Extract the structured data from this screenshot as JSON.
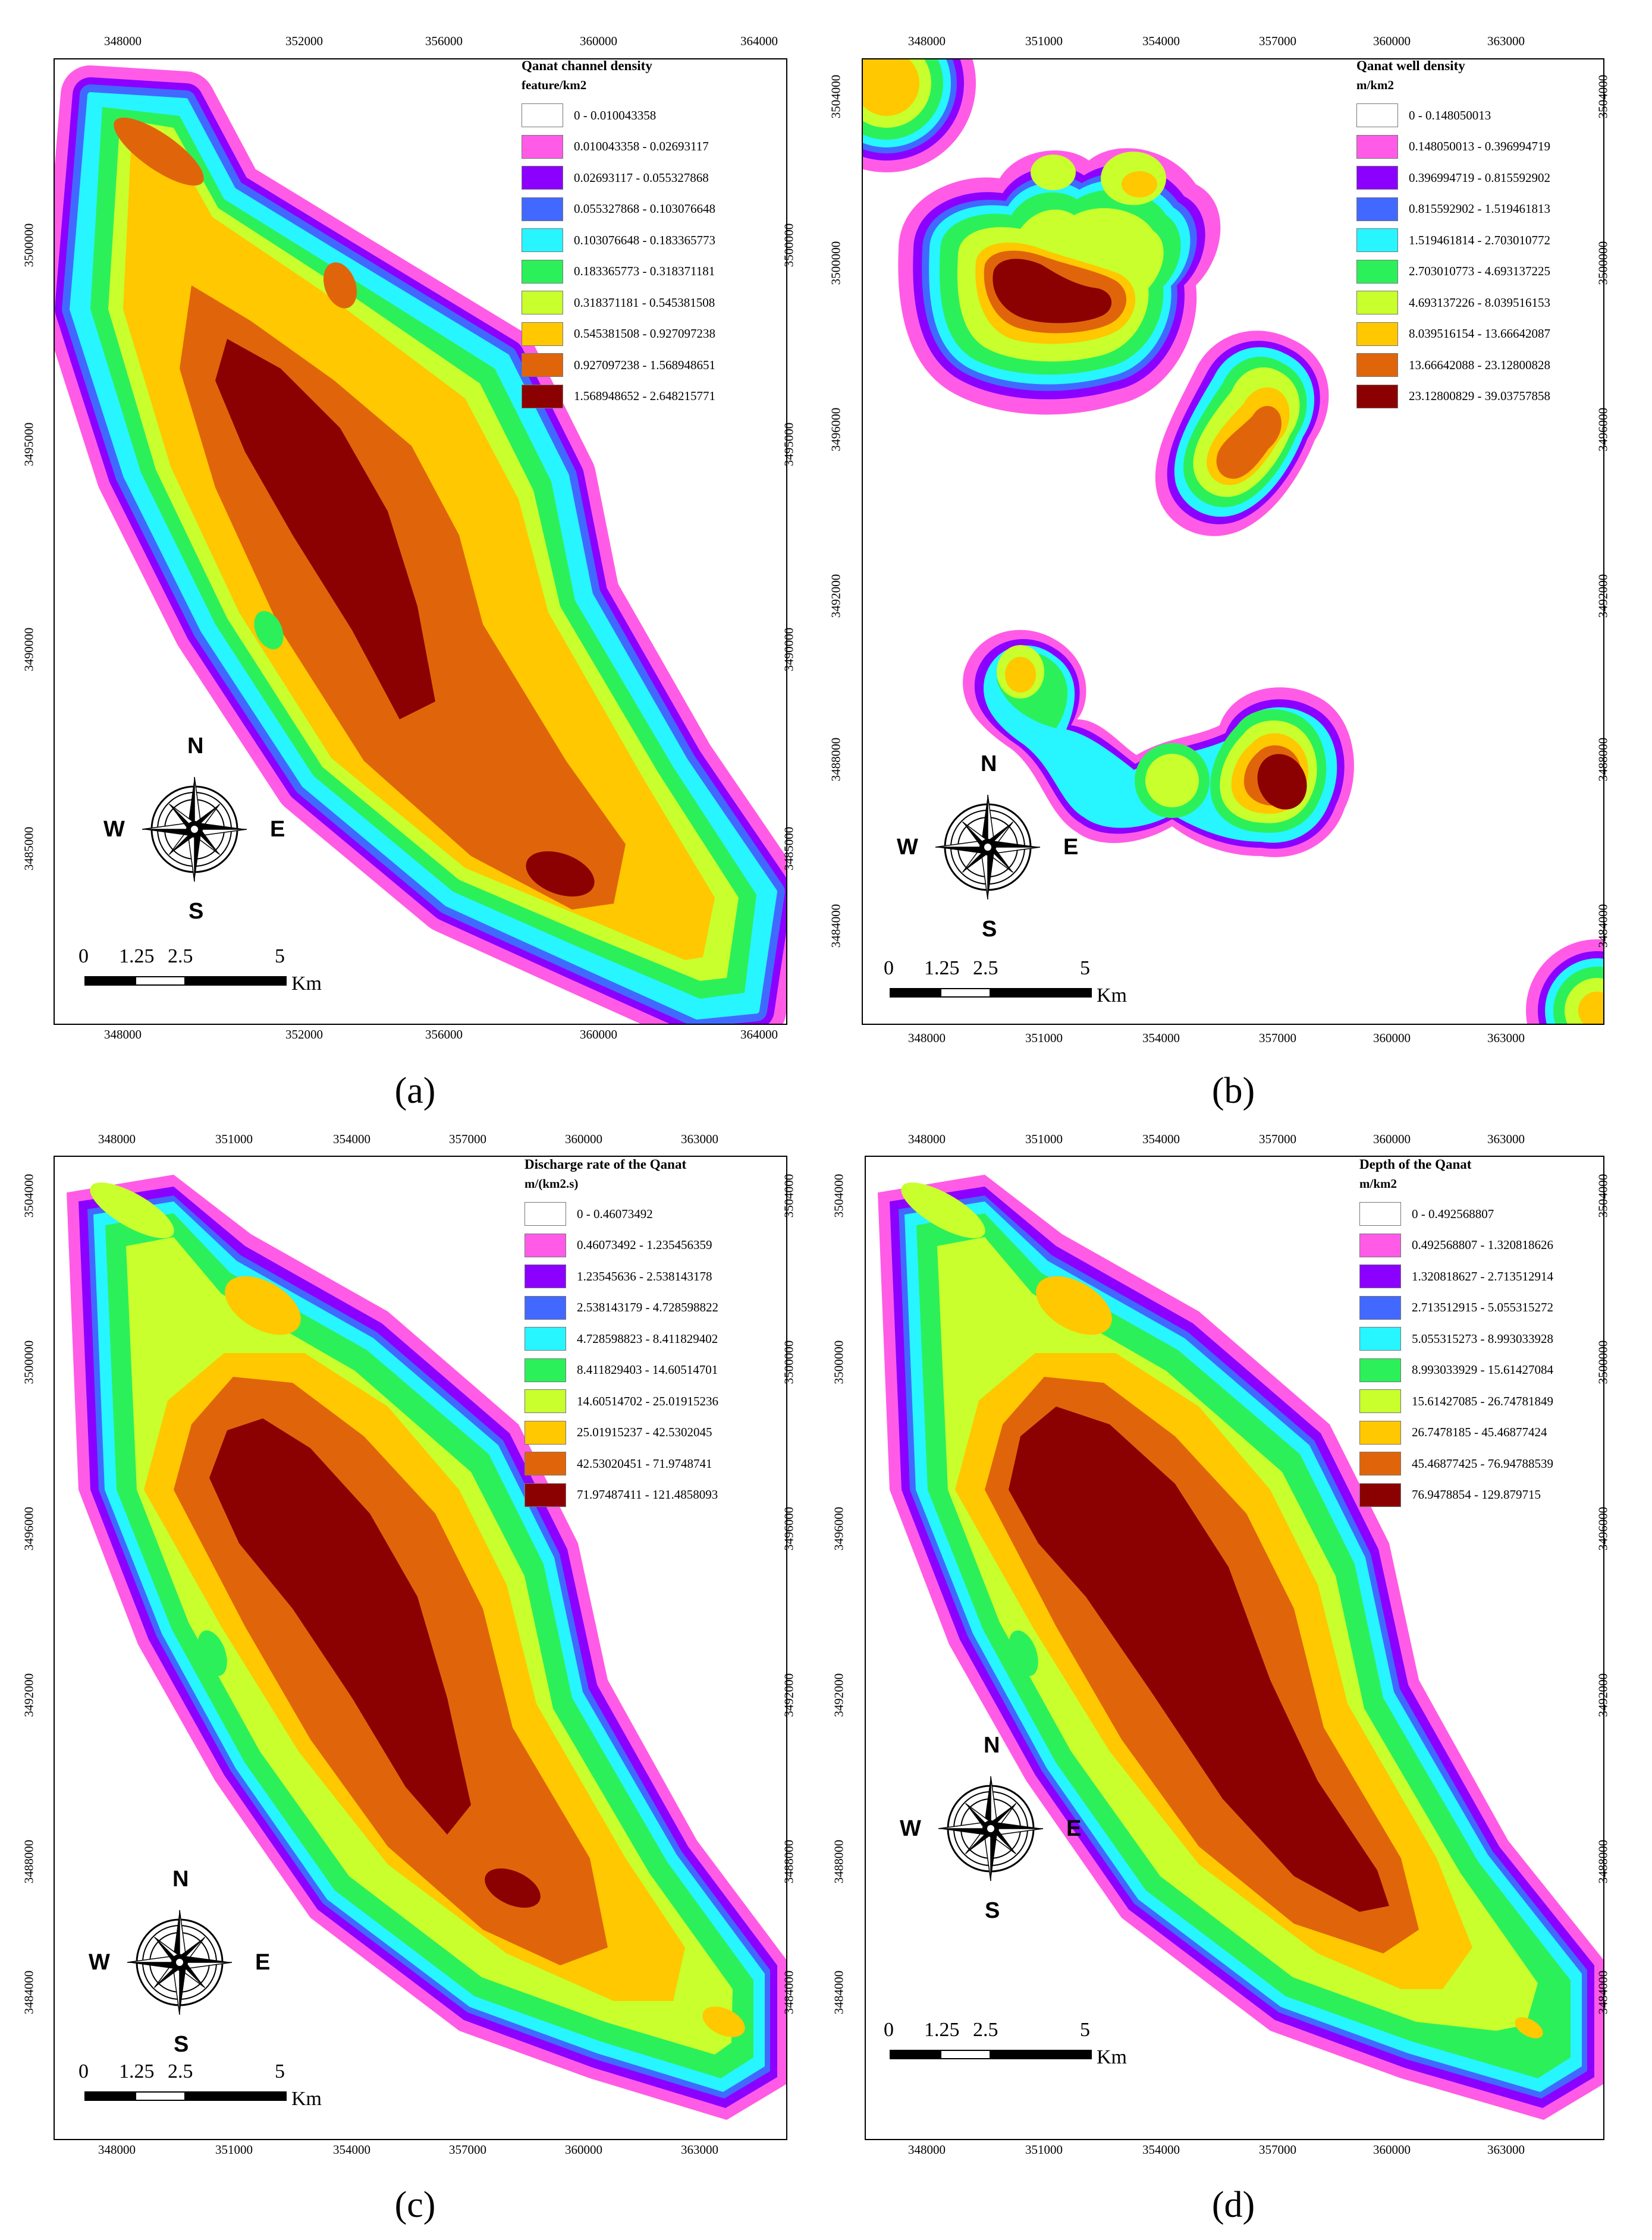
{
  "panels": [
    {
      "id": "a",
      "label": "(a)",
      "legend_title": "Qanat channel density",
      "legend_unit": "feature/km2",
      "classes": [
        "0 - 0.010043358",
        "0.010043358 - 0.02693117",
        "0.02693117 - 0.055327868",
        "0.055327868 - 0.103076648",
        "0.103076648 - 0.183365773",
        "0.183365773 - 0.318371181",
        "0.318371181 - 0.545381508",
        "0.545381508 - 0.927097238",
        "0.927097238 - 1.568948651",
        "1.568948652 - 2.648215771"
      ],
      "x_ticks": [
        "348000",
        "352000",
        "356000",
        "360000",
        "364000"
      ],
      "y_ticks": [
        "3500000",
        "3495000",
        "3490000",
        "3485000"
      ],
      "scale": [
        "0",
        "1.25",
        "2.5",
        "5"
      ],
      "scale_unit": "Km"
    },
    {
      "id": "b",
      "label": "(b)",
      "legend_title": "Qanat well density",
      "legend_unit": "m/km2",
      "classes": [
        "0 - 0.148050013",
        "0.148050013 - 0.396994719",
        "0.396994719 - 0.815592902",
        "0.815592902 - 1.519461813",
        "1.519461814 - 2.703010772",
        "2.703010773 - 4.693137225",
        "4.693137226 - 8.039516153",
        "8.039516154 - 13.66642087",
        "13.66642088 - 23.12800828",
        "23.12800829 - 39.03757858"
      ],
      "x_ticks": [
        "348000",
        "351000",
        "354000",
        "357000",
        "360000",
        "363000"
      ],
      "y_ticks": [
        "3504000",
        "3500000",
        "3496000",
        "3492000",
        "3488000",
        "3484000"
      ],
      "scale": [
        "0",
        "1.25",
        "2.5",
        "5"
      ],
      "scale_unit": "Km"
    },
    {
      "id": "c",
      "label": "(c)",
      "legend_title": "Discharge rate of the Qanat",
      "legend_unit": "m/(km2.s)",
      "classes": [
        "0 - 0.46073492",
        "0.46073492 - 1.235456359",
        "1.23545636 - 2.538143178",
        "2.538143179 - 4.728598822",
        "4.728598823 - 8.411829402",
        "8.411829403 - 14.60514701",
        "14.60514702 - 25.01915236",
        "25.01915237 - 42.5302045",
        "42.53020451 - 71.9748741",
        "71.97487411 - 121.4858093"
      ],
      "x_ticks": [
        "348000",
        "351000",
        "354000",
        "357000",
        "360000",
        "363000"
      ],
      "y_ticks": [
        "3504000",
        "3500000",
        "3496000",
        "3492000",
        "3488000",
        "3484000"
      ],
      "scale": [
        "0",
        "1.25",
        "2.5",
        "5"
      ],
      "scale_unit": "Km"
    },
    {
      "id": "d",
      "label": "(d)",
      "legend_title": "Depth of the Qanat",
      "legend_unit": "m/km2",
      "classes": [
        "0 - 0.492568807",
        "0.492568807 - 1.320818626",
        "1.320818627 - 2.713512914",
        "2.713512915 - 5.055315272",
        "5.055315273 - 8.993033928",
        "8.993033929 - 15.61427084",
        "15.61427085 - 26.74781849",
        "26.7478185 - 45.46877424",
        "45.46877425 - 76.94788539",
        "76.9478854 - 129.879715"
      ],
      "x_ticks": [
        "348000",
        "351000",
        "354000",
        "357000",
        "360000",
        "363000"
      ],
      "y_ticks": [
        "3504000",
        "3500000",
        "3496000",
        "3492000",
        "3488000",
        "3484000"
      ],
      "scale": [
        "0",
        "1.25",
        "2.5",
        "5"
      ],
      "scale_unit": "Km"
    }
  ],
  "class_colors": [
    "#ffffff",
    "#ff5be6",
    "#8b00ff",
    "#4169ff",
    "#27f5ff",
    "#2cf05a",
    "#c8ff2d",
    "#ffc800",
    "#e0650a",
    "#8b0000"
  ],
  "compass": {
    "n": "N",
    "s": "S",
    "e": "E",
    "w": "W"
  }
}
